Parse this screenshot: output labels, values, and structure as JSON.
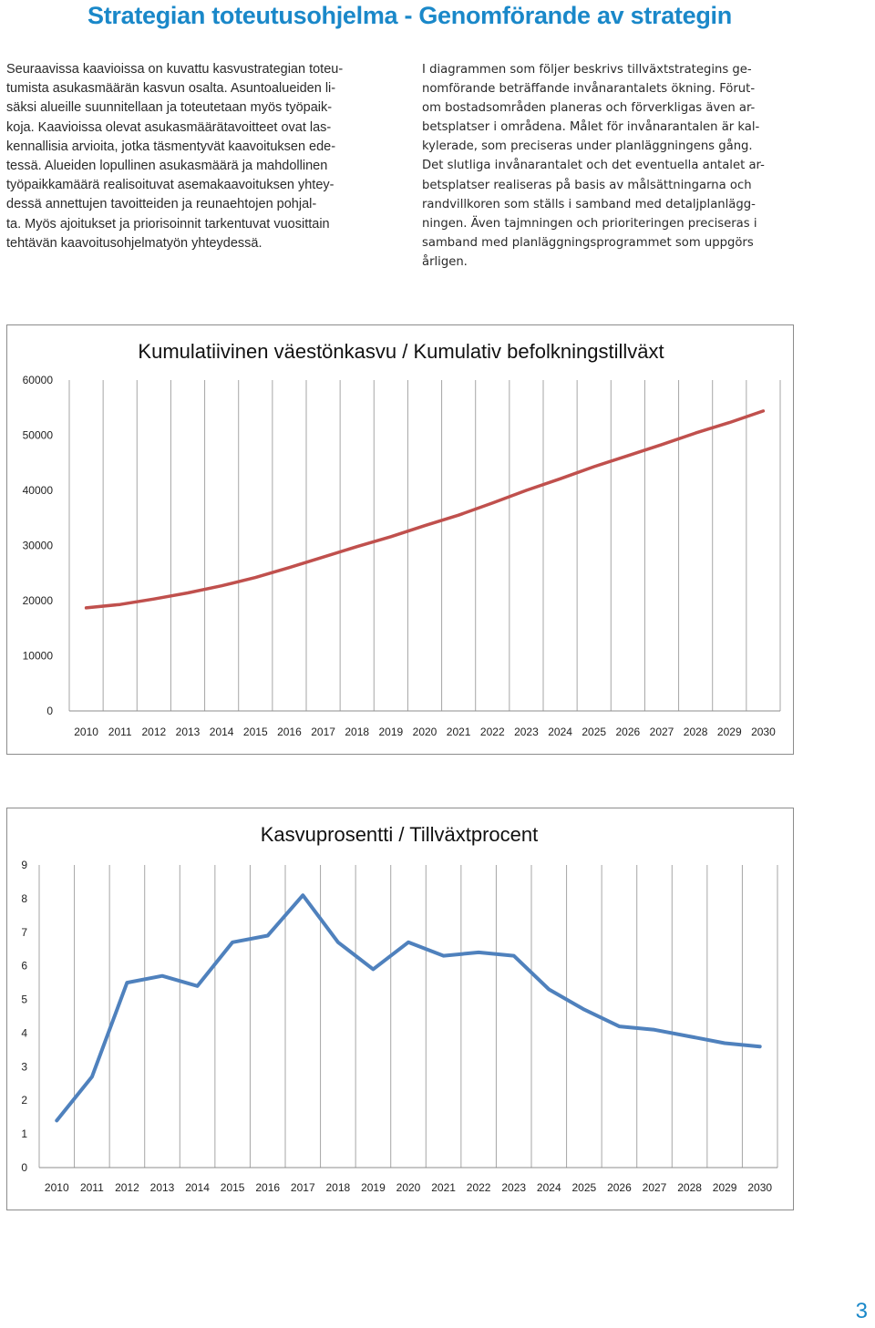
{
  "page": {
    "title": "Strategian toteutusohjelma - Genomförande av strategin",
    "page_number": "3"
  },
  "text_fi": {
    "lines": [
      "Seuraavissa kaavioissa on kuvattu kasvustrategian toteu-",
      "tumista asukasmäärän kasvun osalta. Asuntoalueiden li-",
      "säksi alueille suunnitellaan ja toteutetaan myös työpaik-",
      "koja. Kaavioissa olevat asukasmäärätavoitteet ovat las-",
      "kennallisia arvioita, jotka täsmentyvät kaavoituksen ede-",
      "tessä. Alueiden lopullinen asukasmäärä ja mahdollinen",
      "työpaikkamäärä realisoituvat asemakaavoituksen yhtey-",
      "dessä annettujen tavoitteiden ja reunaehtojen pohjal-",
      "ta. Myös ajoitukset ja priorisoinnit tarkentuvat vuosittain",
      "tehtävän kaavoitusohjelmatyön yhteydessä."
    ]
  },
  "text_sv": {
    "lines": [
      "I diagrammen som följer beskrivs tillväxtstrategins ge-",
      "nomförande beträffande invånarantalets ökning. Förut-",
      "om bostadsområden planeras och förverkligas även ar-",
      "betsplatser i områdena. Målet för invånarantalen är kal-",
      "kylerade, som preciseras under planläggningens gång.",
      "Det slutliga invånarantalet och det eventuella antalet ar-",
      "betsplatser realiseras på basis av målsättningarna och",
      "randvillkoren som ställs i samband med detaljplanlägg-",
      "ningen. Även tajmningen och prioriteringen preciseras i",
      "samband med planläggningsprogrammet som uppgörs",
      "årligen."
    ]
  },
  "chart_data": [
    {
      "type": "line",
      "title": "Kumulatiivinen väestönkasvu / Kumulativ befolkningstillväxt",
      "xlabel": "",
      "ylabel": "",
      "x": [
        "2010",
        "2011",
        "2012",
        "2013",
        "2014",
        "2015",
        "2016",
        "2017",
        "2018",
        "2019",
        "2020",
        "2021",
        "2022",
        "2023",
        "2024",
        "2025",
        "2026",
        "2027",
        "2028",
        "2029",
        "2030"
      ],
      "y_ticks": [
        "0",
        "10000",
        "20000",
        "30000",
        "40000",
        "50000",
        "60000"
      ],
      "ylim": [
        0,
        60000
      ],
      "grid": "vertical",
      "legend": "none",
      "series": [
        {
          "color": "#c0504d",
          "values": [
            18700,
            19300,
            20300,
            21400,
            22700,
            24200,
            26000,
            27900,
            29800,
            31600,
            33600,
            35500,
            37700,
            40000,
            42100,
            44300,
            46300,
            48300,
            50400,
            52300,
            54400
          ]
        }
      ]
    },
    {
      "type": "line",
      "title": "Kasvuprosentti / Tillväxtprocent",
      "xlabel": "",
      "ylabel": "",
      "x": [
        "2010",
        "2011",
        "2012",
        "2013",
        "2014",
        "2015",
        "2016",
        "2017",
        "2018",
        "2019",
        "2020",
        "2021",
        "2022",
        "2023",
        "2024",
        "2025",
        "2026",
        "2027",
        "2028",
        "2029",
        "2030"
      ],
      "y_ticks": [
        "0",
        "1",
        "2",
        "3",
        "4",
        "5",
        "6",
        "7",
        "8",
        "9"
      ],
      "ylim": [
        0,
        9
      ],
      "grid": "vertical",
      "legend": "none",
      "series": [
        {
          "color": "#4f81bd",
          "values": [
            1.4,
            2.7,
            5.5,
            5.7,
            5.4,
            6.7,
            6.9,
            8.1,
            6.7,
            5.9,
            6.7,
            6.3,
            6.4,
            6.3,
            5.3,
            4.7,
            4.2,
            4.1,
            3.9,
            3.7,
            3.6
          ]
        }
      ]
    }
  ]
}
